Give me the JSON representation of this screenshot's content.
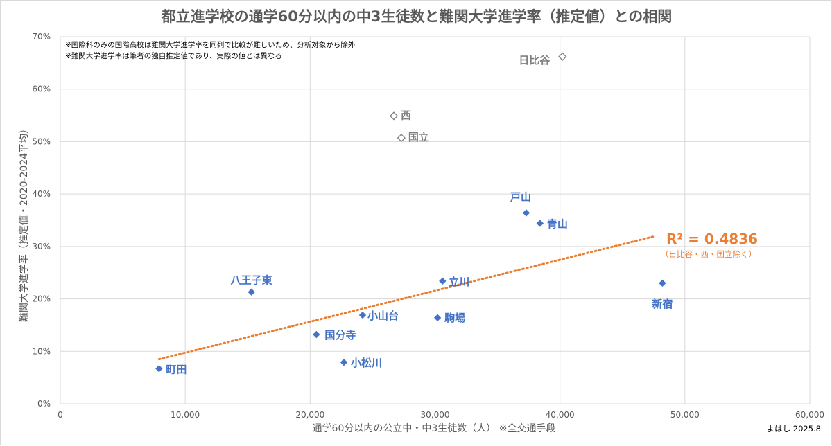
{
  "chart_data": {
    "type": "scatter",
    "title": "都立進学校の通学60分以内の中3生徒数と難関大学進学率（推定値）との相関",
    "xlabel": "通学60分以内の公立中・中3生徒数（人） ※全交通手段",
    "ylabel": "難関大学進学率（推定値・2020-2024平均）",
    "xlim": [
      0,
      60000
    ],
    "ylim": [
      0,
      70
    ],
    "x_ticks": [
      "0",
      "10,000",
      "20,000",
      "30,000",
      "40,000",
      "50,000",
      "60,000"
    ],
    "y_ticks": [
      "0%",
      "10%",
      "20%",
      "30%",
      "40%",
      "50%",
      "60%",
      "70%"
    ],
    "grid": "vertical and horizontal",
    "notes": [
      "※国際科のみの国際高校は難関大学進学率を同列で比較が難しいため、分析対象から除外",
      "※難関大学進学率は筆者の独自推定値であり、実際の値とは異なる"
    ],
    "points": [
      {
        "name": "町田",
        "x": 7900,
        "y": 6.7,
        "included": true
      },
      {
        "name": "八王子東",
        "x": 15300,
        "y": 21.3,
        "included": true
      },
      {
        "name": "国分寺",
        "x": 20500,
        "y": 13.2,
        "included": true
      },
      {
        "name": "小松川",
        "x": 22700,
        "y": 7.9,
        "included": true
      },
      {
        "name": "小山台",
        "x": 24200,
        "y": 16.9,
        "included": true
      },
      {
        "name": "駒場",
        "x": 30200,
        "y": 16.4,
        "included": true
      },
      {
        "name": "立川",
        "x": 30600,
        "y": 23.4,
        "included": true
      },
      {
        "name": "戸山",
        "x": 37300,
        "y": 36.4,
        "included": true
      },
      {
        "name": "青山",
        "x": 38400,
        "y": 34.4,
        "included": true
      },
      {
        "name": "新宿",
        "x": 48200,
        "y": 23.0,
        "included": true
      },
      {
        "name": "日比谷",
        "x": 40200,
        "y": 66.2,
        "included": false
      },
      {
        "name": "西",
        "x": 26700,
        "y": 54.9,
        "included": false
      },
      {
        "name": "国立",
        "x": 27300,
        "y": 50.7,
        "included": false
      }
    ],
    "trendline": {
      "style": "dotted",
      "x_start": 7900,
      "y_start": 8.5,
      "x_end": 47500,
      "y_end": 31.9,
      "r2_label": "R² = 0.4836",
      "r2_note": "（日比谷・西・国立除く）"
    },
    "colors": {
      "included": "#4472C4",
      "excluded": "#7F7F7F",
      "trendline": "#ED7D31",
      "grid": "#D9D9D9",
      "text": "#595959"
    }
  },
  "credit": "よはし 2025.8"
}
